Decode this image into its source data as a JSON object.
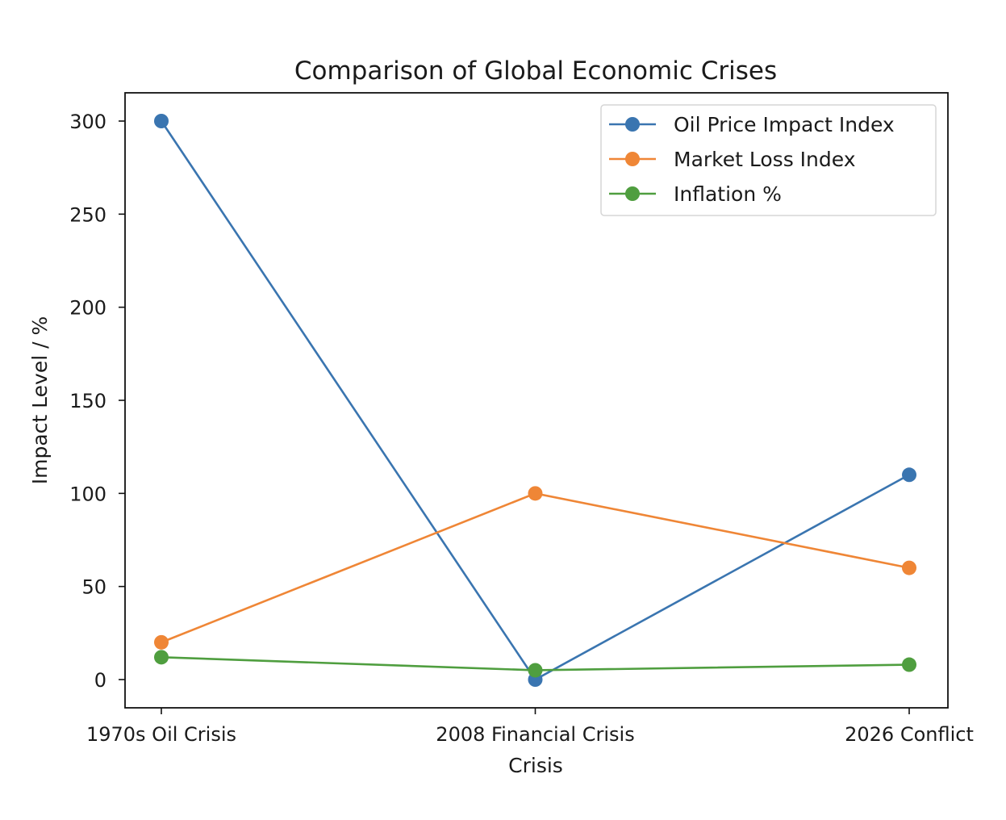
{
  "chart_data": {
    "type": "line",
    "title": "Comparison of Global Economic Crises",
    "xlabel": "Crisis",
    "ylabel": "Impact Level / %",
    "categories": [
      "1970s Oil Crisis",
      "2008 Financial Crisis",
      "2026 Conflict"
    ],
    "ylim": [
      -15,
      315
    ],
    "yticks": [
      0,
      50,
      100,
      150,
      200,
      250,
      300
    ],
    "grid": false,
    "legend_position": "top-right",
    "series": [
      {
        "name": "Oil Price Impact Index",
        "color": "#3a75b0",
        "values": [
          300,
          0,
          110
        ]
      },
      {
        "name": "Market Loss Index",
        "color": "#ef8636",
        "values": [
          20,
          100,
          60
        ]
      },
      {
        "name": "Inflation %",
        "color": "#4f9e3f",
        "values": [
          12,
          5,
          8
        ]
      }
    ]
  }
}
